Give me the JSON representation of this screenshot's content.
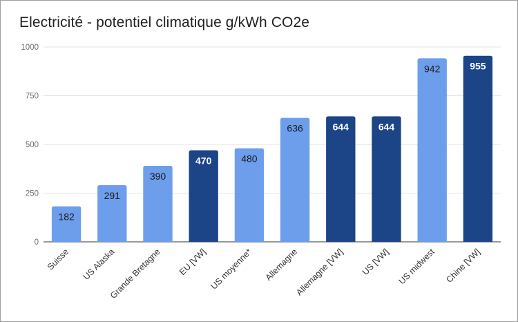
{
  "chart_data": {
    "type": "bar",
    "title": "Electricité - potentiel climatique g/kWh CO2e",
    "xlabel": "",
    "ylabel": "",
    "ylim": [
      0,
      1000
    ],
    "yticks": [
      "0",
      "250",
      "500",
      "750",
      "1000"
    ],
    "categories": [
      "Suisse",
      "US Alaska",
      "Grande Bretagne",
      "EU [VW]",
      "US moyenne*",
      "Allemagne",
      "Allemagne [VW]",
      "US [VW]",
      "US midwest",
      "Chine [VW]"
    ],
    "values": [
      182,
      291,
      390,
      470,
      480,
      636,
      644,
      644,
      942,
      955
    ],
    "bar_colors": [
      "#6d9eeb",
      "#6d9eeb",
      "#6d9eeb",
      "#1c4587",
      "#6d9eeb",
      "#6d9eeb",
      "#1c4587",
      "#1c4587",
      "#6d9eeb",
      "#1c4587"
    ],
    "label_colors": [
      "#1a1a1a",
      "#1a1a1a",
      "#1a1a1a",
      "#ffffff",
      "#1a1a1a",
      "#1a1a1a",
      "#ffffff",
      "#ffffff",
      "#1a1a1a",
      "#ffffff"
    ],
    "grid": true,
    "legend": "none"
  }
}
